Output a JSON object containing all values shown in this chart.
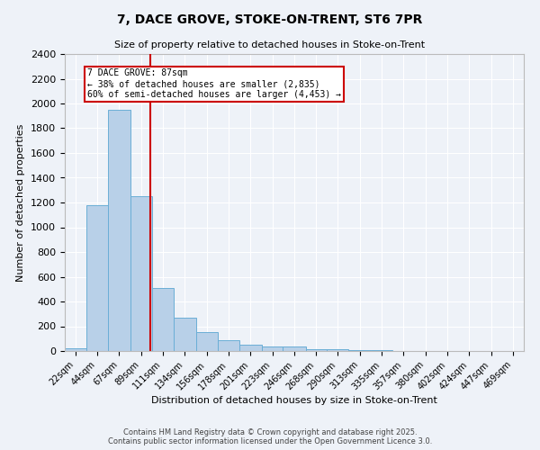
{
  "title_line1": "7, DACE GROVE, STOKE-ON-TRENT, ST6 7PR",
  "title_line2": "Size of property relative to detached houses in Stoke-on-Trent",
  "xlabel": "Distribution of detached houses by size in Stoke-on-Trent",
  "ylabel": "Number of detached properties",
  "bin_labels": [
    "22sqm",
    "44sqm",
    "67sqm",
    "89sqm",
    "111sqm",
    "134sqm",
    "156sqm",
    "178sqm",
    "201sqm",
    "223sqm",
    "246sqm",
    "268sqm",
    "290sqm",
    "313sqm",
    "335sqm",
    "357sqm",
    "380sqm",
    "402sqm",
    "424sqm",
    "447sqm",
    "469sqm"
  ],
  "bar_values": [
    25,
    1175,
    1950,
    1250,
    510,
    270,
    155,
    90,
    50,
    38,
    35,
    15,
    12,
    5,
    4,
    3,
    2,
    1,
    1,
    1,
    0
  ],
  "bar_color": "#b8d0e8",
  "bar_edge_color": "#6aaed6",
  "property_label": "7 DACE GROVE: 87sqm",
  "annotation_line1": "← 38% of detached houses are smaller (2,835)",
  "annotation_line2": "60% of semi-detached houses are larger (4,453) →",
  "annotation_box_color": "#ffffff",
  "annotation_box_edge": "#cc0000",
  "vline_color": "#cc0000",
  "vline_x": 87,
  "bin_edges": [
    0,
    22,
    44,
    67,
    89,
    111,
    134,
    156,
    178,
    201,
    223,
    246,
    268,
    290,
    313,
    335,
    357,
    380,
    402,
    424,
    447,
    469
  ],
  "ylim": [
    0,
    2400
  ],
  "yticks": [
    0,
    200,
    400,
    600,
    800,
    1000,
    1200,
    1400,
    1600,
    1800,
    2000,
    2200,
    2400
  ],
  "footer_line1": "Contains HM Land Registry data © Crown copyright and database right 2025.",
  "footer_line2": "Contains public sector information licensed under the Open Government Licence 3.0.",
  "background_color": "#eef2f8",
  "grid_color": "#ffffff",
  "figsize": [
    6.0,
    5.0
  ],
  "dpi": 100
}
